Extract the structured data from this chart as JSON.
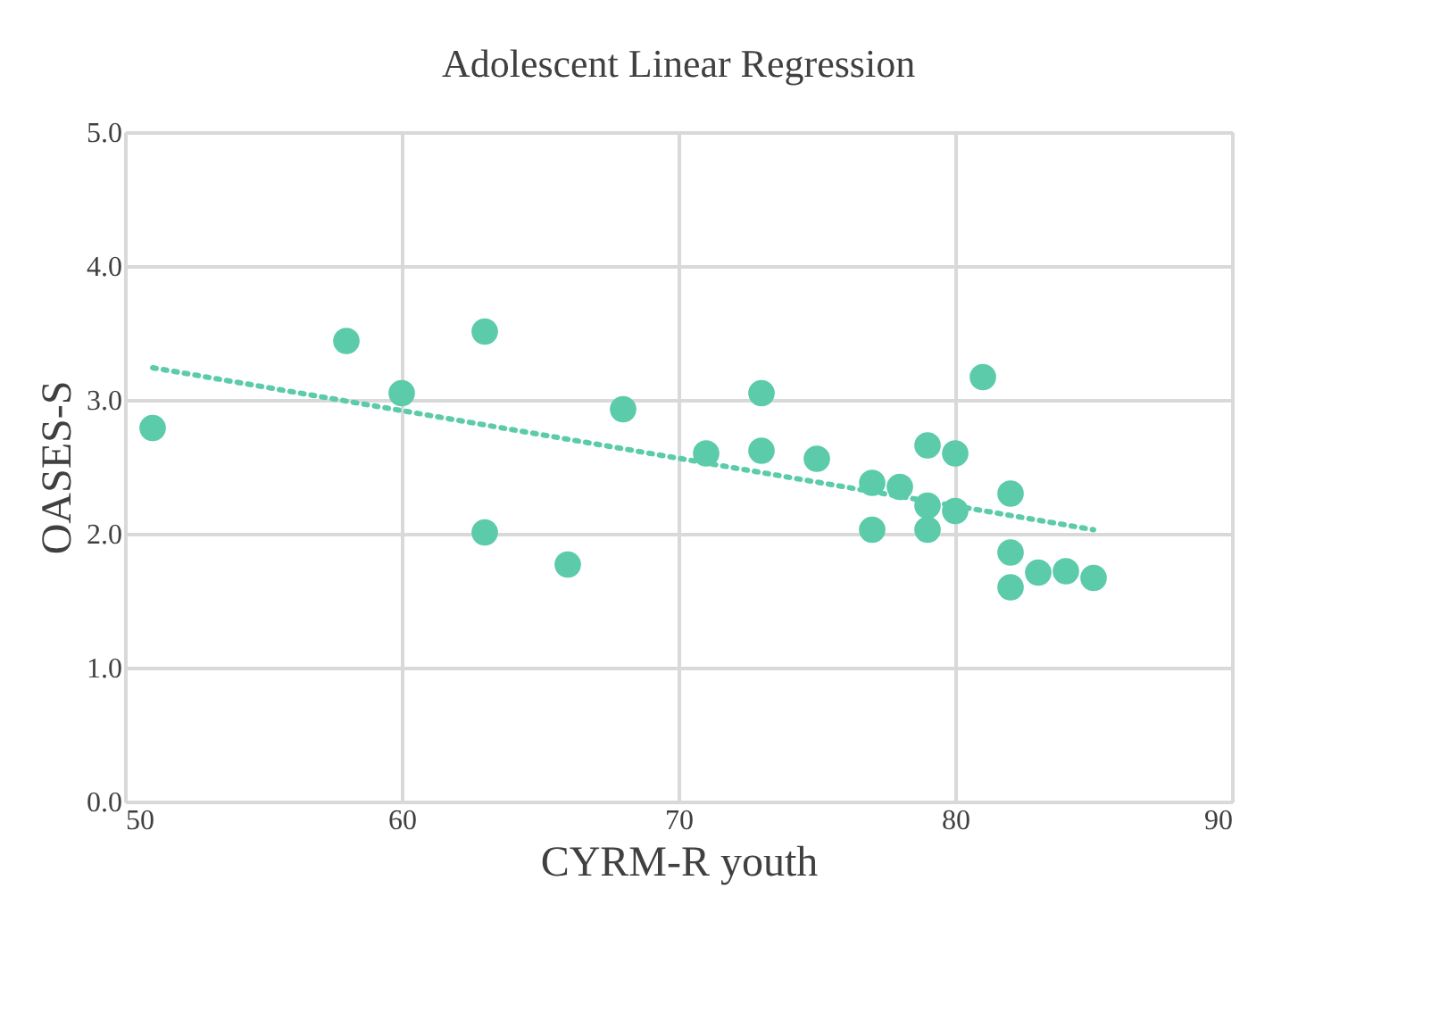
{
  "chart_data": {
    "type": "scatter",
    "title": "Adolescent Linear Regression",
    "xlabel": "CYRM-R youth",
    "ylabel": "OASES-S",
    "xlim": [
      50,
      90
    ],
    "xticks": [
      50,
      60,
      70,
      80,
      90
    ],
    "ylim": [
      0,
      5
    ],
    "yticks": [
      {
        "value": 0,
        "label": "0.0"
      },
      {
        "value": 1,
        "label": "1.0"
      },
      {
        "value": 2,
        "label": "2.0"
      },
      {
        "value": 3,
        "label": "3.0"
      },
      {
        "value": 4,
        "label": "4.0"
      },
      {
        "value": 5,
        "label": "5.0"
      }
    ],
    "grid": true,
    "marker": "circle",
    "series": [
      {
        "color": "#5bcba9",
        "x": [
          51,
          58,
          60,
          63,
          63,
          66,
          68,
          71,
          73,
          73,
          75,
          77,
          77,
          78,
          79,
          79,
          79,
          80,
          80,
          81,
          82,
          82,
          82,
          83,
          84,
          85
        ],
        "values": [
          2.79,
          3.44,
          3.05,
          3.51,
          2.01,
          1.77,
          2.93,
          2.6,
          3.05,
          2.62,
          2.56,
          2.38,
          2.03,
          2.35,
          2.66,
          2.21,
          2.03,
          2.6,
          2.17,
          3.17,
          2.3,
          1.86,
          1.6,
          1.71,
          1.72,
          1.67
        ]
      },
      {
        "type": "line",
        "marker": "none",
        "color": "#5bcba9",
        "line_style": "dotted",
        "x": [
          51,
          85
        ],
        "values": [
          3.24,
          2.03
        ]
      }
    ]
  }
}
